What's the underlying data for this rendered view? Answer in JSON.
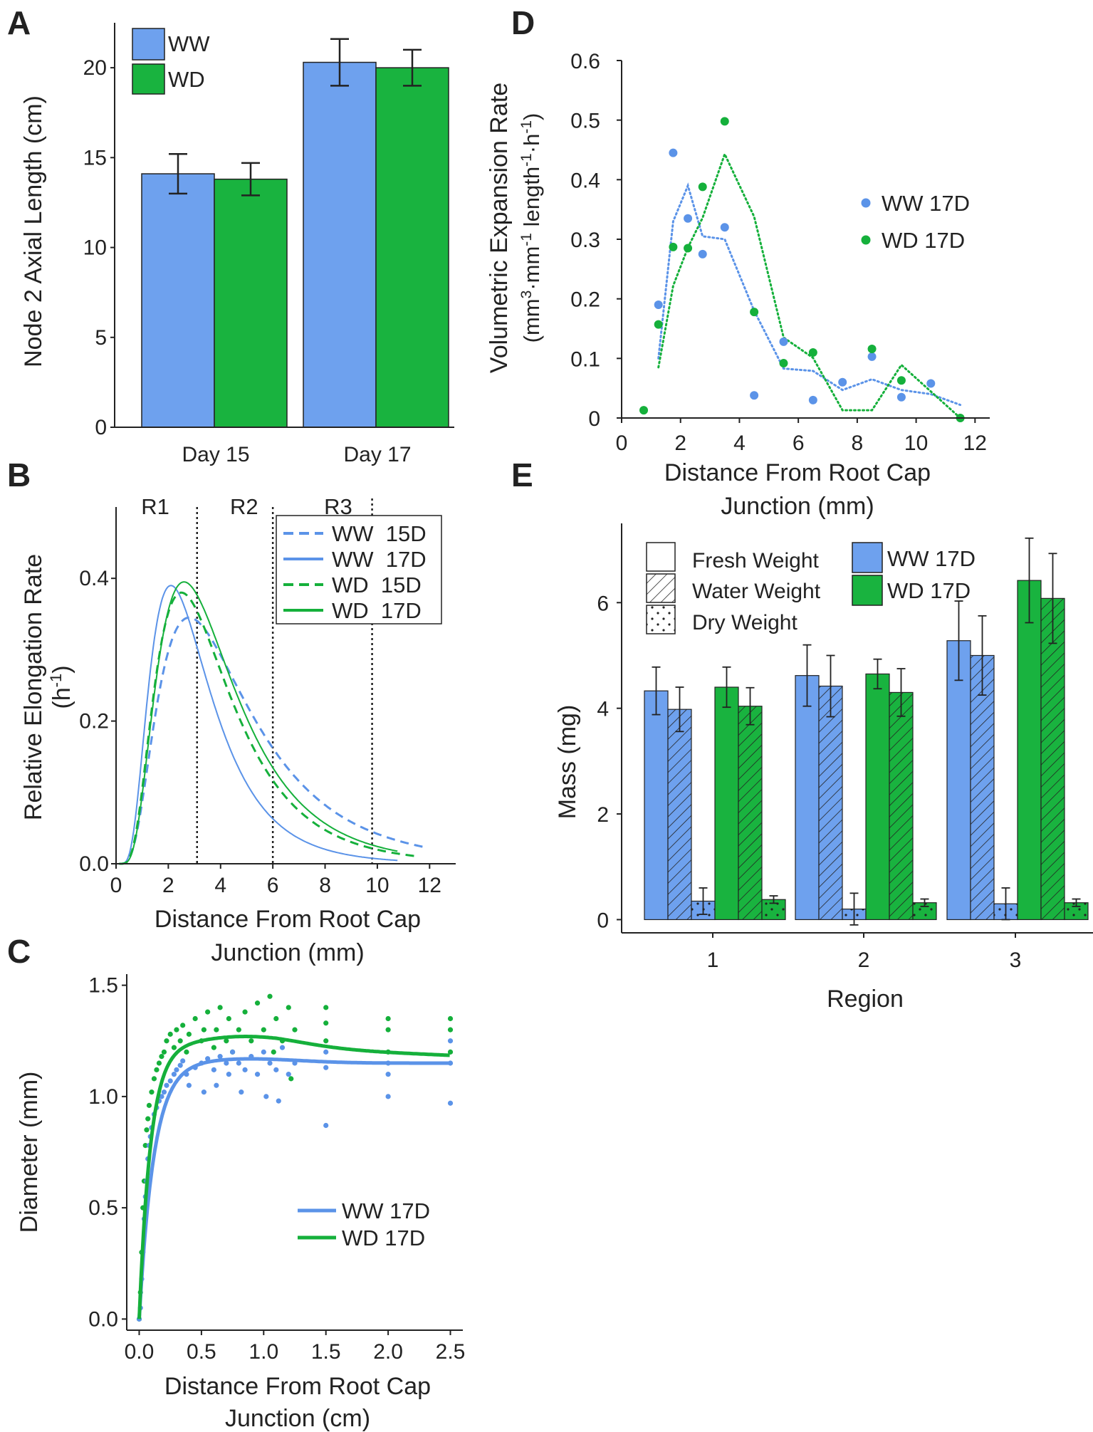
{
  "colors": {
    "ww": "#5b93e8",
    "wd": "#15b03b",
    "ww_fill": "#6ea1ee",
    "wd_fill": "#19b33f"
  },
  "chart_data": [
    {
      "id": "A",
      "panel_label": "A",
      "type": "bar",
      "categories": [
        "Day 15",
        "Day 17"
      ],
      "series": [
        {
          "name": "WW",
          "values": [
            14.1,
            20.3
          ],
          "errors": [
            1.1,
            1.3
          ]
        },
        {
          "name": "WD",
          "values": [
            13.8,
            20.0
          ],
          "errors": [
            0.9,
            1.0
          ]
        }
      ],
      "ylabel": "Node 2 Axial Length (cm)",
      "yticks": [
        "0",
        "5",
        "10",
        "15",
        "20"
      ],
      "ylim": [
        0,
        22.5
      ]
    },
    {
      "id": "B",
      "panel_label": "B",
      "type": "line",
      "xlabel_line1": "Distance From Root Cap",
      "xlabel_line2": "Junction (mm)",
      "ylabel_line1": "Relative Elongation Rate",
      "ylabel_line2": "(h",
      "ylabel_sup": "-1",
      "ylabel_close": ")",
      "xlim": [
        0,
        13
      ],
      "ylim": [
        0,
        0.5
      ],
      "xticks": [
        "0",
        "2",
        "4",
        "6",
        "8",
        "10",
        "12"
      ],
      "yticks": [
        "0.0",
        "0.2",
        "0.4"
      ],
      "regions": [
        "R1",
        "R2",
        "R3"
      ],
      "region_boundaries": [
        3.1,
        6.0,
        9.8
      ],
      "series": [
        {
          "name": "WW  15D",
          "style": "dashed",
          "peak_x": 2.8,
          "peak_y": 0.345,
          "sigma": 0.62,
          "tail_end": 0.012,
          "x_end": 11.8
        },
        {
          "name": "WW  17D",
          "style": "solid",
          "peak_x": 2.1,
          "peak_y": 0.39,
          "sigma": 0.55,
          "tail_end": 0.002,
          "x_end": 10.8
        },
        {
          "name": "WD  15D",
          "style": "dashed",
          "peak_x": 2.5,
          "peak_y": 0.38,
          "sigma": 0.57,
          "tail_end": 0.008,
          "x_end": 11.5
        },
        {
          "name": "WD  17D",
          "style": "solid",
          "peak_x": 2.6,
          "peak_y": 0.395,
          "sigma": 0.57,
          "tail_end": 0.004,
          "x_end": 10.8
        }
      ]
    },
    {
      "id": "C",
      "panel_label": "C",
      "type": "scatter",
      "xlabel_line1": "Distance From Root Cap",
      "xlabel_line2": "Junction (cm)",
      "ylabel": "Diameter (mm)",
      "xlim": [
        -0.1,
        2.6
      ],
      "ylim": [
        -0.05,
        1.55
      ],
      "xticks": [
        "0.0",
        "0.5",
        "1.0",
        "1.5",
        "2.0",
        "2.5"
      ],
      "yticks": [
        "0.0",
        "0.5",
        "1.0",
        "1.5"
      ],
      "series": [
        {
          "name": "WW 17D",
          "fit_plateau": 1.15,
          "fit_peak": 1.17,
          "fit_k": 8.5,
          "points": [
            [
              0,
              0
            ],
            [
              0.01,
              0.05
            ],
            [
              0.02,
              0.18
            ],
            [
              0.03,
              0.3
            ],
            [
              0.04,
              0.45
            ],
            [
              0.05,
              0.55
            ],
            [
              0.06,
              0.62
            ],
            [
              0.07,
              0.72
            ],
            [
              0.08,
              0.78
            ],
            [
              0.09,
              0.82
            ],
            [
              0.1,
              0.86
            ],
            [
              0.12,
              0.92
            ],
            [
              0.14,
              0.95
            ],
            [
              0.16,
              0.98
            ],
            [
              0.18,
              1.0
            ],
            [
              0.2,
              1.02
            ],
            [
              0.22,
              1.05
            ],
            [
              0.25,
              1.07
            ],
            [
              0.28,
              1.1
            ],
            [
              0.3,
              1.12
            ],
            [
              0.33,
              1.14
            ],
            [
              0.35,
              1.16
            ],
            [
              0.38,
              1.1
            ],
            [
              0.4,
              1.05
            ],
            [
              0.45,
              1.13
            ],
            [
              0.5,
              1.15
            ],
            [
              0.52,
              1.02
            ],
            [
              0.55,
              1.17
            ],
            [
              0.6,
              1.12
            ],
            [
              0.62,
              1.05
            ],
            [
              0.65,
              1.18
            ],
            [
              0.7,
              1.15
            ],
            [
              0.72,
              1.1
            ],
            [
              0.75,
              1.2
            ],
            [
              0.8,
              1.15
            ],
            [
              0.82,
              1.02
            ],
            [
              0.85,
              1.12
            ],
            [
              0.9,
              1.18
            ],
            [
              0.95,
              1.1
            ],
            [
              1.0,
              1.2
            ],
            [
              1.02,
              1.0
            ],
            [
              1.05,
              1.15
            ],
            [
              1.1,
              1.12
            ],
            [
              1.12,
              0.98
            ],
            [
              1.15,
              1.22
            ],
            [
              1.2,
              1.1
            ],
            [
              1.25,
              1.15
            ],
            [
              1.5,
              0.87
            ],
            [
              1.5,
              1.13
            ],
            [
              1.5,
              1.2
            ],
            [
              2.0,
              1.0
            ],
            [
              2.0,
              1.1
            ],
            [
              2.0,
              1.15
            ],
            [
              2.5,
              0.97
            ],
            [
              2.5,
              1.15
            ],
            [
              2.5,
              1.25
            ]
          ]
        },
        {
          "name": "WD 17D",
          "fit_plateau": 1.22,
          "fit_peak": 1.27,
          "fit_k": 11.0,
          "points": [
            [
              0,
              0
            ],
            [
              0.01,
              0.12
            ],
            [
              0.02,
              0.3
            ],
            [
              0.03,
              0.5
            ],
            [
              0.04,
              0.62
            ],
            [
              0.05,
              0.78
            ],
            [
              0.06,
              0.85
            ],
            [
              0.07,
              0.9
            ],
            [
              0.08,
              0.96
            ],
            [
              0.1,
              1.02
            ],
            [
              0.12,
              1.08
            ],
            [
              0.14,
              1.12
            ],
            [
              0.16,
              1.15
            ],
            [
              0.18,
              1.18
            ],
            [
              0.2,
              1.2
            ],
            [
              0.22,
              1.25
            ],
            [
              0.25,
              1.28
            ],
            [
              0.28,
              1.22
            ],
            [
              0.3,
              1.3
            ],
            [
              0.33,
              1.25
            ],
            [
              0.35,
              1.32
            ],
            [
              0.38,
              1.2
            ],
            [
              0.4,
              1.28
            ],
            [
              0.45,
              1.35
            ],
            [
              0.5,
              1.25
            ],
            [
              0.52,
              1.3
            ],
            [
              0.55,
              1.38
            ],
            [
              0.6,
              1.22
            ],
            [
              0.62,
              1.3
            ],
            [
              0.65,
              1.4
            ],
            [
              0.7,
              1.25
            ],
            [
              0.72,
              1.35
            ],
            [
              0.75,
              1.2
            ],
            [
              0.8,
              1.3
            ],
            [
              0.85,
              1.38
            ],
            [
              0.9,
              1.25
            ],
            [
              0.95,
              1.42
            ],
            [
              1.0,
              1.3
            ],
            [
              1.05,
              1.45
            ],
            [
              1.08,
              1.2
            ],
            [
              1.1,
              1.35
            ],
            [
              1.15,
              1.25
            ],
            [
              1.2,
              1.4
            ],
            [
              1.22,
              1.08
            ],
            [
              1.25,
              1.3
            ],
            [
              1.5,
              1.25
            ],
            [
              1.5,
              1.33
            ],
            [
              1.5,
              1.4
            ],
            [
              2.0,
              1.2
            ],
            [
              2.0,
              1.3
            ],
            [
              2.0,
              1.35
            ],
            [
              2.5,
              1.2
            ],
            [
              2.5,
              1.3
            ],
            [
              2.5,
              1.35
            ]
          ]
        }
      ]
    },
    {
      "id": "D",
      "panel_label": "D",
      "type": "scatter",
      "xlabel_line1": "Distance From Root Cap",
      "xlabel_line2": "Junction (mm)",
      "ylabel_l1_a": "Volumetric Expansion Rate",
      "ylabel_l2_a": "(mm",
      "ylabel_l2_s1": "3",
      "ylabel_l2_b": "·mm",
      "ylabel_l2_s2": "-1",
      "ylabel_l2_c": " length",
      "ylabel_l2_s3": "-1",
      "ylabel_l2_d": "·h",
      "ylabel_l2_s4": "-1",
      "ylabel_l2_e": ")",
      "xlim": [
        0,
        12.5
      ],
      "ylim": [
        0,
        0.6
      ],
      "xticks": [
        "0",
        "2",
        "4",
        "6",
        "8",
        "10",
        "12"
      ],
      "yticks": [
        "0",
        "0.1",
        "0.2",
        "0.3",
        "0.4",
        "0.5",
        "0.6"
      ],
      "series": [
        {
          "name": "WW 17D",
          "points": [
            [
              1.25,
              0.19
            ],
            [
              1.75,
              0.445
            ],
            [
              2.25,
              0.335
            ],
            [
              2.75,
              0.275
            ],
            [
              3.5,
              0.32
            ],
            [
              4.5,
              0.038
            ],
            [
              5.5,
              0.128
            ],
            [
              6.5,
              0.03
            ],
            [
              7.5,
              0.06
            ],
            [
              8.5,
              0.103
            ],
            [
              9.5,
              0.035
            ],
            [
              10.5,
              0.058
            ]
          ],
          "trend": [
            [
              1.25,
              0.1
            ],
            [
              1.75,
              0.33
            ],
            [
              2.25,
              0.39
            ],
            [
              2.75,
              0.305
            ],
            [
              3.5,
              0.3
            ],
            [
              4.5,
              0.18
            ],
            [
              5.5,
              0.083
            ],
            [
              6.5,
              0.079
            ],
            [
              7.5,
              0.047
            ],
            [
              8.5,
              0.065
            ],
            [
              9.5,
              0.047
            ],
            [
              10.5,
              0.04
            ],
            [
              11.5,
              0.022
            ]
          ]
        },
        {
          "name": "WD 17D",
          "points": [
            [
              0.75,
              0.013
            ],
            [
              1.25,
              0.157
            ],
            [
              1.75,
              0.287
            ],
            [
              2.25,
              0.285
            ],
            [
              2.75,
              0.388
            ],
            [
              3.5,
              0.498
            ],
            [
              4.5,
              0.178
            ],
            [
              5.5,
              0.092
            ],
            [
              6.5,
              0.11
            ],
            [
              8.5,
              0.116
            ],
            [
              9.5,
              0.063
            ],
            [
              11.5,
              0.0
            ]
          ],
          "trend": [
            [
              1.25,
              0.085
            ],
            [
              1.75,
              0.222
            ],
            [
              2.25,
              0.286
            ],
            [
              2.75,
              0.336
            ],
            [
              3.5,
              0.443
            ],
            [
              4.5,
              0.338
            ],
            [
              5.5,
              0.135
            ],
            [
              6.5,
              0.101
            ],
            [
              7.5,
              0.013
            ],
            [
              8.5,
              0.013
            ],
            [
              9.5,
              0.089
            ],
            [
              11.5,
              0.0
            ]
          ]
        }
      ]
    },
    {
      "id": "E",
      "panel_label": "E",
      "type": "bar",
      "categories": [
        "1",
        "2",
        "3"
      ],
      "xlabel": "Region",
      "ylabel": "Mass (mg)",
      "ylim": [
        -0.25,
        7.5
      ],
      "yticks": [
        "0",
        "2",
        "4",
        "6"
      ],
      "legend_fills": [
        "Fresh Weight",
        "Water Weight",
        "Dry Weight"
      ],
      "legend_groups": [
        "WW 17D",
        "WD 17D"
      ],
      "series": [
        {
          "name": "WW 17D Fresh Weight",
          "group": "ww",
          "pattern": "solid",
          "values": [
            4.33,
            4.62,
            5.28
          ],
          "errors": [
            0.45,
            0.58,
            0.75
          ]
        },
        {
          "name": "WW 17D Water Weight",
          "group": "ww",
          "pattern": "hatch",
          "values": [
            3.98,
            4.42,
            5.0
          ],
          "errors": [
            0.42,
            0.58,
            0.75
          ]
        },
        {
          "name": "WW 17D Dry Weight",
          "group": "ww",
          "pattern": "dots",
          "values": [
            0.35,
            0.2,
            0.3
          ],
          "errors": [
            0.25,
            0.3,
            0.3
          ]
        },
        {
          "name": "WD 17D Fresh Weight",
          "group": "wd",
          "pattern": "solid",
          "values": [
            4.4,
            4.65,
            6.42
          ],
          "errors": [
            0.38,
            0.28,
            0.8
          ]
        },
        {
          "name": "WD 17D Water Weight",
          "group": "wd",
          "pattern": "hatch",
          "values": [
            4.04,
            4.3,
            6.08
          ],
          "errors": [
            0.35,
            0.45,
            0.85
          ]
        },
        {
          "name": "WD 17D Dry Weight",
          "group": "wd",
          "pattern": "dots",
          "values": [
            0.38,
            0.32,
            0.32
          ],
          "errors": [
            0.07,
            0.07,
            0.07
          ]
        }
      ]
    }
  ]
}
